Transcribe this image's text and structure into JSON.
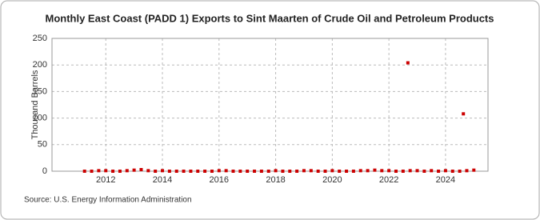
{
  "chart_data": {
    "type": "scatter",
    "title": "Monthly East Coast (PADD 1) Exports to Sint Maarten of Crude Oil and Petroleum Products",
    "y_label": "Thousand Barrels",
    "source": "Source: U.S. Energy Information Administration",
    "x": [
      2011.25,
      2011.5,
      2011.75,
      2012,
      2012.25,
      2012.5,
      2012.75,
      2013,
      2013.25,
      2013.5,
      2013.75,
      2014,
      2014.25,
      2014.5,
      2014.75,
      2015,
      2015.25,
      2015.5,
      2015.75,
      2016,
      2016.25,
      2016.5,
      2016.75,
      2017,
      2017.25,
      2017.5,
      2017.75,
      2018,
      2018.25,
      2018.5,
      2018.75,
      2019,
      2019.25,
      2019.5,
      2019.75,
      2020,
      2020.25,
      2020.5,
      2020.75,
      2021,
      2021.25,
      2021.5,
      2021.75,
      2022,
      2022.25,
      2022.5,
      2022.67,
      2022.75,
      2023,
      2023.25,
      2023.5,
      2023.75,
      2024,
      2024.25,
      2024.5,
      2024.63,
      2024.75,
      2025
    ],
    "values": [
      0,
      0,
      1,
      1,
      0,
      0,
      1,
      2,
      3,
      1,
      0,
      1,
      0,
      0,
      0,
      0,
      0,
      0,
      0,
      1,
      1,
      0,
      0,
      0,
      0,
      0,
      0,
      1,
      0,
      0,
      0,
      1,
      1,
      0,
      0,
      1,
      0,
      0,
      0,
      1,
      1,
      2,
      1,
      1,
      0,
      0,
      204,
      1,
      1,
      0,
      1,
      0,
      1,
      0,
      0,
      108,
      1,
      2
    ],
    "color": "#cc0000",
    "xlim": [
      2010.1,
      2025.5
    ],
    "xticks": [
      2012,
      2014,
      2016,
      2018,
      2020,
      2022,
      2024
    ],
    "ylim": [
      0,
      250
    ],
    "yticks": [
      0,
      50,
      100,
      150,
      200,
      250
    ],
    "grid": true
  }
}
